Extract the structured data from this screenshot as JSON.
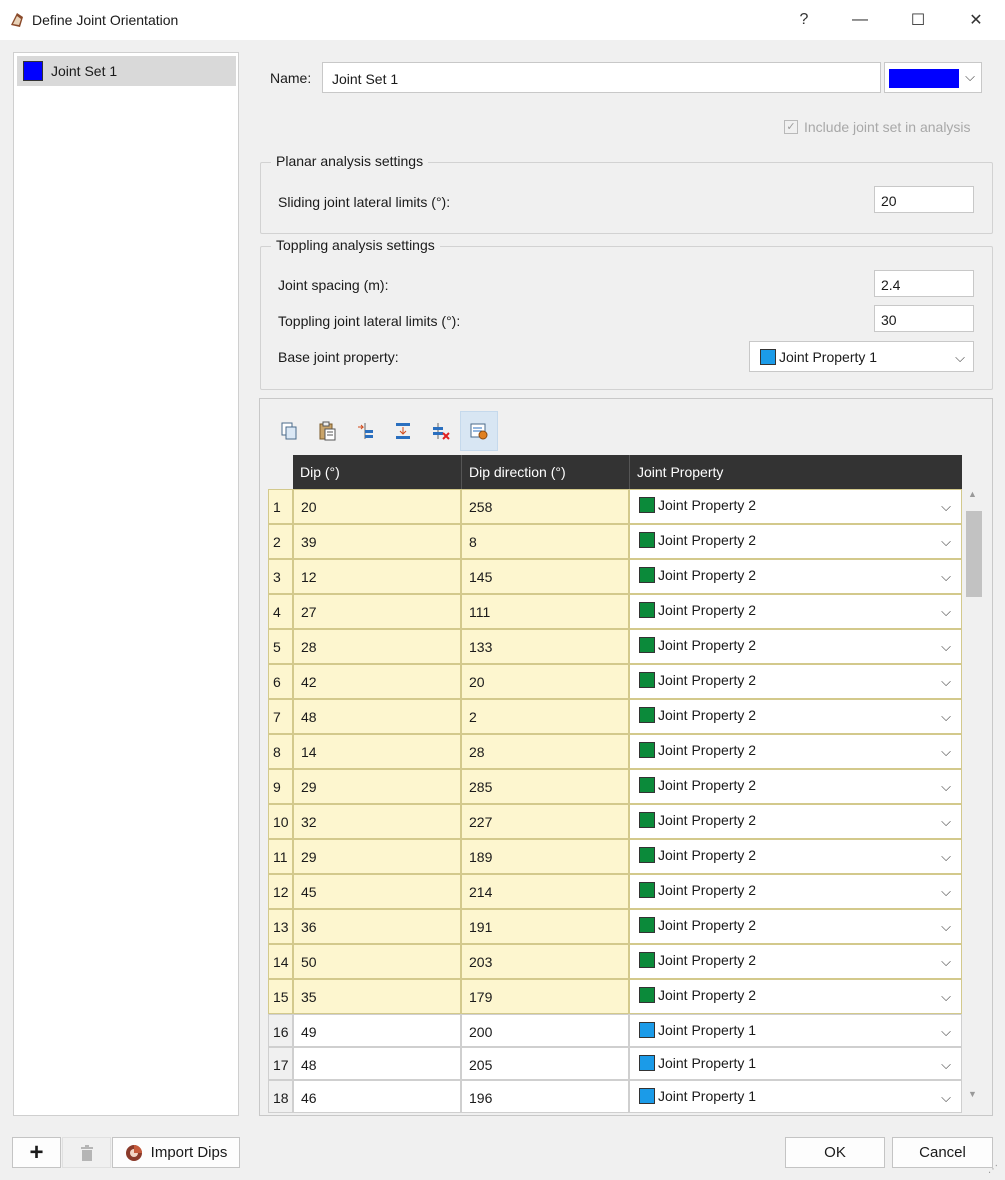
{
  "window": {
    "title": "Define Joint Orientation",
    "help_symbol": "?",
    "minimize_symbol": "—",
    "maximize_symbol": "☐",
    "close_symbol": "✕"
  },
  "joint_sets": [
    {
      "label": "Joint Set 1",
      "color": "#0000ff"
    }
  ],
  "name_field": {
    "label": "Name:",
    "value": "Joint Set 1",
    "color": "#0000ff"
  },
  "include_checkbox": {
    "label": "Include joint set in analysis",
    "checked": true,
    "enabled": false
  },
  "planar": {
    "title": "Planar analysis settings",
    "sliding_label": "Sliding joint lateral limits (°):",
    "sliding_value": "20"
  },
  "toppling": {
    "title": "Toppling analysis settings",
    "spacing_label": "Joint spacing (m):",
    "spacing_value": "2.4",
    "lateral_label": "Toppling joint lateral limits (°):",
    "lateral_value": "30",
    "base_label": "Base joint property:",
    "base_value": "Joint Property 1",
    "base_color": "#1b9be8"
  },
  "toolbar_icons": [
    "copy-icon",
    "paste-icon",
    "insert-row-icon",
    "insert-row-below-icon",
    "delete-row-icon",
    "table-settings-icon"
  ],
  "table": {
    "headers": [
      "Dip (°)",
      "Dip direction (°)",
      "Joint Property"
    ],
    "rows": [
      {
        "n": "1",
        "dip": "20",
        "dir": "258",
        "prop": "Joint Property 2",
        "color": "#0b8a3a",
        "hl": true
      },
      {
        "n": "2",
        "dip": "39",
        "dir": "8",
        "prop": "Joint Property 2",
        "color": "#0b8a3a",
        "hl": true
      },
      {
        "n": "3",
        "dip": "12",
        "dir": "145",
        "prop": "Joint Property 2",
        "color": "#0b8a3a",
        "hl": true
      },
      {
        "n": "4",
        "dip": "27",
        "dir": "111",
        "prop": "Joint Property 2",
        "color": "#0b8a3a",
        "hl": true
      },
      {
        "n": "5",
        "dip": "28",
        "dir": "133",
        "prop": "Joint Property 2",
        "color": "#0b8a3a",
        "hl": true
      },
      {
        "n": "6",
        "dip": "42",
        "dir": "20",
        "prop": "Joint Property 2",
        "color": "#0b8a3a",
        "hl": true
      },
      {
        "n": "7",
        "dip": "48",
        "dir": "2",
        "prop": "Joint Property 2",
        "color": "#0b8a3a",
        "hl": true
      },
      {
        "n": "8",
        "dip": "14",
        "dir": "28",
        "prop": "Joint Property 2",
        "color": "#0b8a3a",
        "hl": true
      },
      {
        "n": "9",
        "dip": "29",
        "dir": "285",
        "prop": "Joint Property 2",
        "color": "#0b8a3a",
        "hl": true
      },
      {
        "n": "10",
        "dip": "32",
        "dir": "227",
        "prop": "Joint Property 2",
        "color": "#0b8a3a",
        "hl": true
      },
      {
        "n": "11",
        "dip": "29",
        "dir": "189",
        "prop": "Joint Property 2",
        "color": "#0b8a3a",
        "hl": true
      },
      {
        "n": "12",
        "dip": "45",
        "dir": "214",
        "prop": "Joint Property 2",
        "color": "#0b8a3a",
        "hl": true
      },
      {
        "n": "13",
        "dip": "36",
        "dir": "191",
        "prop": "Joint Property 2",
        "color": "#0b8a3a",
        "hl": true
      },
      {
        "n": "14",
        "dip": "50",
        "dir": "203",
        "prop": "Joint Property 2",
        "color": "#0b8a3a",
        "hl": true
      },
      {
        "n": "15",
        "dip": "35",
        "dir": "179",
        "prop": "Joint Property 2",
        "color": "#0b8a3a",
        "hl": true
      },
      {
        "n": "16",
        "dip": "49",
        "dir": "200",
        "prop": "Joint Property 1",
        "color": "#1b9be8",
        "hl": false
      },
      {
        "n": "17",
        "dip": "48",
        "dir": "205",
        "prop": "Joint Property 1",
        "color": "#1b9be8",
        "hl": false
      },
      {
        "n": "18",
        "dip": "46",
        "dir": "196",
        "prop": "Joint Property 1",
        "color": "#1b9be8",
        "hl": false
      }
    ]
  },
  "buttons": {
    "add": "+",
    "delete_icon": "trash-icon",
    "import": "Import Dips",
    "ok": "OK",
    "cancel": "Cancel"
  }
}
